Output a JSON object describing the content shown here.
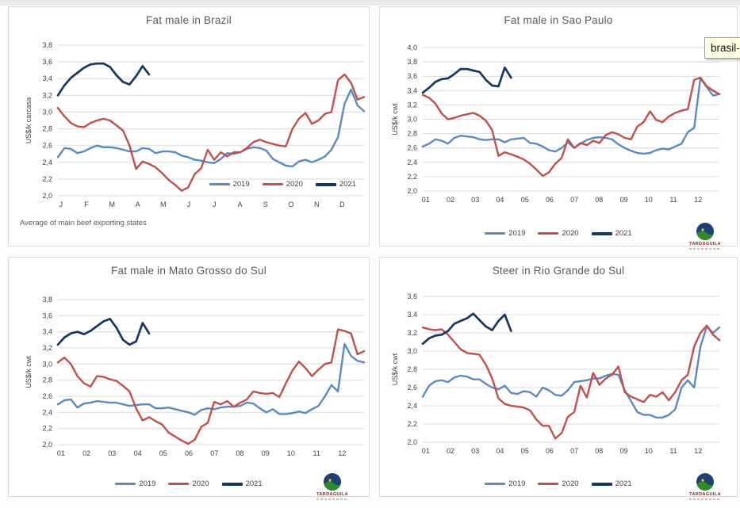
{
  "tooltip": {
    "text": "brasil-m"
  },
  "logo": {
    "text": "TARDAGUILA"
  },
  "chart_data": [
    {
      "type": "line",
      "title": "Fat male in Brazil",
      "ylabel": "US$/k carcasa",
      "xlabel": "",
      "caption": "Average of main beef exporting states",
      "ylim": [
        2.0,
        3.8
      ],
      "grid": true,
      "legend_position": "inside-bottom-right",
      "x_labels": [
        "J",
        "F",
        "M",
        "A",
        "M",
        "J",
        "J",
        "A",
        "S",
        "O",
        "N",
        "D"
      ],
      "yticks": [
        2.0,
        2.2,
        2.4,
        2.6,
        2.8,
        3.0,
        3.2,
        3.4,
        3.6,
        3.8
      ],
      "ytick_labels": [
        "2,0",
        "2,2",
        "2,4",
        "2,6",
        "2,8",
        "3,0",
        "3,2",
        "3,4",
        "3,6",
        "3,8"
      ],
      "series": [
        {
          "name": "2019",
          "color": "#5B8AC0",
          "values": [
            2.46,
            2.57,
            2.56,
            2.51,
            2.53,
            2.57,
            2.6,
            2.58,
            2.58,
            2.57,
            2.55,
            2.53,
            2.53,
            2.57,
            2.56,
            2.51,
            2.53,
            2.53,
            2.52,
            2.48,
            2.46,
            2.43,
            2.42,
            2.4,
            2.39,
            2.44,
            2.51,
            2.5,
            2.52,
            2.56,
            2.58,
            2.57,
            2.54,
            2.44,
            2.4,
            2.36,
            2.35,
            2.41,
            2.43,
            2.4,
            2.43,
            2.47,
            2.55,
            2.7,
            3.1,
            3.27,
            3.08,
            3.01
          ]
        },
        {
          "name": "2020",
          "color": "#C14F4C",
          "values": [
            3.05,
            2.95,
            2.87,
            2.83,
            2.82,
            2.87,
            2.9,
            2.92,
            2.9,
            2.84,
            2.78,
            2.6,
            2.32,
            2.41,
            2.38,
            2.34,
            2.27,
            2.19,
            2.13,
            2.06,
            2.1,
            2.26,
            2.33,
            2.55,
            2.43,
            2.52,
            2.47,
            2.52,
            2.52,
            2.57,
            2.64,
            2.67,
            2.64,
            2.62,
            2.6,
            2.59,
            2.8,
            2.92,
            2.99,
            2.86,
            2.9,
            2.98,
            3.0,
            3.38,
            3.45,
            3.35,
            3.15,
            3.18
          ]
        },
        {
          "name": "2021",
          "color": "#17375E",
          "values": [
            3.2,
            3.32,
            3.41,
            3.47,
            3.53,
            3.57,
            3.58,
            3.58,
            3.54,
            3.44,
            3.36,
            3.33,
            3.43,
            3.55,
            3.45
          ]
        }
      ]
    },
    {
      "type": "line",
      "title": "Fat male in Sao Paulo",
      "ylabel": "US$/k cwt",
      "xlabel": "",
      "ylim": [
        2.0,
        4.0
      ],
      "grid": true,
      "legend_position": "below-center",
      "x_labels": [
        "01",
        "02",
        "03",
        "04",
        "05",
        "06",
        "07",
        "08",
        "09",
        "10",
        "11",
        "12"
      ],
      "yticks": [
        2.0,
        2.2,
        2.4,
        2.6,
        2.8,
        3.0,
        3.2,
        3.4,
        3.6,
        3.8,
        4.0
      ],
      "ytick_labels": [
        "2,0",
        "2,2",
        "2,4",
        "2,6",
        "2,8",
        "3,0",
        "3,2",
        "3,4",
        "3,6",
        "3,8",
        "4,0"
      ],
      "series": [
        {
          "name": "2019",
          "color": "#5B8AC0",
          "values": [
            2.62,
            2.66,
            2.72,
            2.7,
            2.66,
            2.74,
            2.77,
            2.76,
            2.75,
            2.72,
            2.71,
            2.72,
            2.72,
            2.68,
            2.72,
            2.73,
            2.74,
            2.67,
            2.66,
            2.62,
            2.57,
            2.55,
            2.6,
            2.68,
            2.6,
            2.66,
            2.71,
            2.74,
            2.75,
            2.74,
            2.72,
            2.65,
            2.6,
            2.56,
            2.53,
            2.52,
            2.53,
            2.57,
            2.59,
            2.58,
            2.62,
            2.66,
            2.82,
            2.88,
            3.57,
            3.45,
            3.33,
            3.35
          ]
        },
        {
          "name": "2020",
          "color": "#C14F4C",
          "values": [
            3.34,
            3.3,
            3.22,
            3.08,
            3.0,
            3.02,
            3.05,
            3.07,
            3.09,
            3.05,
            2.98,
            2.85,
            2.49,
            2.54,
            2.51,
            2.48,
            2.44,
            2.38,
            2.3,
            2.21,
            2.26,
            2.38,
            2.46,
            2.72,
            2.6,
            2.67,
            2.64,
            2.7,
            2.67,
            2.78,
            2.82,
            2.79,
            2.74,
            2.72,
            2.9,
            2.96,
            3.11,
            2.99,
            2.96,
            3.04,
            3.09,
            3.12,
            3.14,
            3.55,
            3.58,
            3.46,
            3.4,
            3.35
          ]
        },
        {
          "name": "2021",
          "color": "#17375E",
          "values": [
            3.37,
            3.44,
            3.52,
            3.56,
            3.57,
            3.63,
            3.7,
            3.7,
            3.68,
            3.66,
            3.55,
            3.47,
            3.46,
            3.72,
            3.58
          ]
        }
      ]
    },
    {
      "type": "line",
      "title": "Fat male in Mato Grosso do Sul",
      "ylabel": "US$/k cwt",
      "xlabel": "",
      "ylim": [
        2.0,
        3.8
      ],
      "grid": true,
      "legend_position": "below-center",
      "x_labels": [
        "01",
        "02",
        "03",
        "04",
        "05",
        "06",
        "07",
        "08",
        "09",
        "10",
        "11",
        "12"
      ],
      "yticks": [
        2.0,
        2.2,
        2.4,
        2.6,
        2.8,
        3.0,
        3.2,
        3.4,
        3.6,
        3.8
      ],
      "ytick_labels": [
        "2,0",
        "2,2",
        "2,4",
        "2,6",
        "2,8",
        "3,0",
        "3,2",
        "3,4",
        "3,6",
        "3,8"
      ],
      "series": [
        {
          "name": "2019",
          "color": "#5B8AC0",
          "values": [
            2.5,
            2.55,
            2.56,
            2.46,
            2.51,
            2.52,
            2.54,
            2.53,
            2.52,
            2.52,
            2.5,
            2.48,
            2.49,
            2.5,
            2.5,
            2.45,
            2.45,
            2.46,
            2.44,
            2.42,
            2.4,
            2.37,
            2.43,
            2.45,
            2.44,
            2.46,
            2.47,
            2.47,
            2.48,
            2.52,
            2.51,
            2.45,
            2.4,
            2.44,
            2.38,
            2.38,
            2.39,
            2.41,
            2.39,
            2.44,
            2.48,
            2.6,
            2.74,
            2.66,
            3.25,
            3.1,
            3.04,
            3.02
          ]
        },
        {
          "name": "2020",
          "color": "#C14F4C",
          "values": [
            3.02,
            3.08,
            3.0,
            2.85,
            2.76,
            2.72,
            2.85,
            2.84,
            2.81,
            2.79,
            2.73,
            2.66,
            2.45,
            2.3,
            2.34,
            2.29,
            2.25,
            2.15,
            2.1,
            2.05,
            2.01,
            2.06,
            2.22,
            2.27,
            2.53,
            2.5,
            2.54,
            2.47,
            2.52,
            2.56,
            2.66,
            2.64,
            2.63,
            2.64,
            2.59,
            2.76,
            2.92,
            3.03,
            2.95,
            2.85,
            2.93,
            3.0,
            3.02,
            3.43,
            3.41,
            3.38,
            3.12,
            3.16
          ]
        },
        {
          "name": "2021",
          "color": "#17375E",
          "values": [
            3.24,
            3.33,
            3.38,
            3.4,
            3.37,
            3.41,
            3.47,
            3.53,
            3.56,
            3.45,
            3.3,
            3.24,
            3.28,
            3.51,
            3.38
          ]
        }
      ]
    },
    {
      "type": "line",
      "title": "Steer in Rio Grande do Sul",
      "ylabel": "US$/k cwt",
      "xlabel": "",
      "ylim": [
        2.0,
        3.6
      ],
      "grid": true,
      "legend_position": "below-center",
      "x_labels": [
        "01",
        "02",
        "03",
        "04",
        "05",
        "06",
        "07",
        "08",
        "09",
        "10",
        "11",
        "12"
      ],
      "yticks": [
        2.0,
        2.2,
        2.4,
        2.6,
        2.8,
        3.0,
        3.2,
        3.4,
        3.6
      ],
      "ytick_labels": [
        "2,0",
        "2,2",
        "2,4",
        "2,6",
        "2,8",
        "3,0",
        "3,2",
        "3,4",
        "3,6"
      ],
      "series": [
        {
          "name": "2019",
          "color": "#5B8AC0",
          "values": [
            2.5,
            2.62,
            2.67,
            2.68,
            2.66,
            2.71,
            2.73,
            2.72,
            2.69,
            2.69,
            2.64,
            2.6,
            2.58,
            2.62,
            2.54,
            2.53,
            2.56,
            2.55,
            2.5,
            2.6,
            2.57,
            2.52,
            2.51,
            2.57,
            2.66,
            2.67,
            2.68,
            2.7,
            2.7,
            2.73,
            2.75,
            2.74,
            2.57,
            2.45,
            2.33,
            2.3,
            2.3,
            2.27,
            2.27,
            2.3,
            2.36,
            2.6,
            2.68,
            2.6,
            3.05,
            3.27,
            3.2,
            3.26
          ]
        },
        {
          "name": "2020",
          "color": "#C14F4C",
          "values": [
            3.26,
            3.24,
            3.23,
            3.24,
            3.18,
            3.1,
            3.02,
            2.98,
            2.97,
            2.96,
            2.85,
            2.7,
            2.48,
            2.42,
            2.4,
            2.39,
            2.38,
            2.35,
            2.25,
            2.18,
            2.18,
            2.04,
            2.1,
            2.28,
            2.33,
            2.62,
            2.49,
            2.76,
            2.63,
            2.7,
            2.74,
            2.83,
            2.55,
            2.5,
            2.47,
            2.44,
            2.52,
            2.5,
            2.55,
            2.46,
            2.55,
            2.68,
            2.74,
            3.05,
            3.2,
            3.28,
            3.18,
            3.12
          ]
        },
        {
          "name": "2021",
          "color": "#17375E",
          "values": [
            3.08,
            3.14,
            3.17,
            3.18,
            3.22,
            3.3,
            3.33,
            3.36,
            3.41,
            3.34,
            3.27,
            3.23,
            3.33,
            3.4,
            3.22
          ]
        }
      ]
    }
  ]
}
